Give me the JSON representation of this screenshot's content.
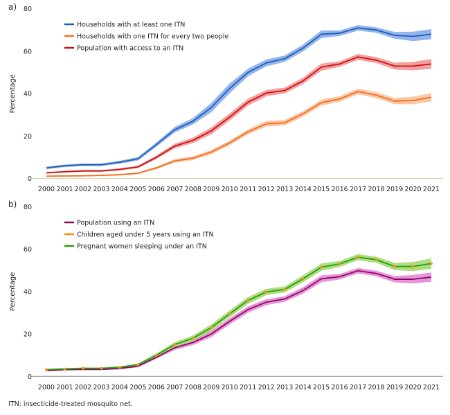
{
  "footnote": "ITN: insecticide-treated mosquito net.",
  "chart_data": [
    {
      "type": "line",
      "panel_label": "a)",
      "ylabel": "Percentage",
      "xlabel": "",
      "ylim": [
        0,
        80
      ],
      "yticks": [
        "0",
        "20",
        "40",
        "60",
        "80"
      ],
      "ytick_values": [
        0,
        20,
        40,
        60,
        80
      ],
      "categories": [
        "2000",
        "2001",
        "2002",
        "2003",
        "2004",
        "2005",
        "2006",
        "2007",
        "2008",
        "2009",
        "2010",
        "2011",
        "2012",
        "2013",
        "2014",
        "2015",
        "2016",
        "2017",
        "2018",
        "2019",
        "2020",
        "2021"
      ],
      "legend_position": "top-left",
      "axis_color": "#c9c99a",
      "series": [
        {
          "name": "Households with at least one ITN",
          "color": "#1f5fb0",
          "band_color": "#6f9be8",
          "values": [
            5,
            6,
            6.5,
            6.5,
            7.7,
            9.3,
            16,
            23,
            27,
            33.5,
            42.5,
            50,
            54.5,
            56.5,
            61.5,
            68,
            68.5,
            71,
            70,
            67.5,
            67,
            68
          ],
          "ci_halfwidth": [
            0.6,
            0.6,
            0.6,
            0.6,
            0.7,
            0.8,
            1,
            1.3,
            1.5,
            2.2,
            2.3,
            1.8,
            1.6,
            1.5,
            1.6,
            1.8,
            1.3,
            1.3,
            1.3,
            1.6,
            2.2,
            2.4
          ]
        },
        {
          "name": "Households with one ITN for every two people",
          "color": "#f07020",
          "band_color": "#f8b48a",
          "values": [
            1.1,
            1.2,
            1.3,
            1.5,
            1.8,
            2.5,
            5,
            8.3,
            9.6,
            12.5,
            16.8,
            22,
            25.8,
            26.3,
            30.5,
            35.8,
            37.5,
            41,
            39.3,
            36.5,
            36.8,
            38.3
          ],
          "ci_halfwidth": [
            0.3,
            0.3,
            0.3,
            0.3,
            0.4,
            0.4,
            0.6,
            0.8,
            0.9,
            1,
            1.1,
            1.2,
            1.3,
            1.3,
            1.3,
            1.4,
            1.3,
            1.4,
            1.4,
            1.5,
            1.8,
            2
          ]
        },
        {
          "name": "Population with access to an ITN",
          "color": "#cc1111",
          "band_color": "#ee8080",
          "values": [
            2.7,
            3.2,
            3.6,
            3.6,
            4.3,
            5.5,
            10,
            15.3,
            18,
            22.5,
            29,
            36,
            40.3,
            41.5,
            46,
            52.5,
            54,
            57.3,
            55.8,
            53,
            53,
            54
          ],
          "ci_halfwidth": [
            0.4,
            0.4,
            0.4,
            0.4,
            0.5,
            0.6,
            0.8,
            1.1,
            1.3,
            1.6,
            1.7,
            1.6,
            1.5,
            1.4,
            1.5,
            1.7,
            1.3,
            1.4,
            1.4,
            1.6,
            2,
            2.3
          ]
        }
      ]
    },
    {
      "type": "line",
      "panel_label": "b)",
      "ylabel": "Percentage",
      "xlabel": "",
      "ylim": [
        0,
        80
      ],
      "yticks": [
        "0",
        "20",
        "40",
        "60",
        "80"
      ],
      "ytick_values": [
        0,
        20,
        40,
        60,
        80
      ],
      "categories": [
        "2000",
        "2001",
        "2002",
        "2003",
        "2004",
        "2005",
        "2006",
        "2007",
        "2008",
        "2009",
        "2010",
        "2011",
        "2012",
        "2013",
        "2014",
        "2015",
        "2016",
        "2017",
        "2018",
        "2019",
        "2020",
        "2021"
      ],
      "legend_position": "top-left",
      "axis_color": "#888888",
      "series": [
        {
          "name": "Population using an ITN",
          "color": "#8a0a5a",
          "band_color": "#e070d0",
          "values": [
            2.8,
            3.2,
            3.3,
            3.3,
            3.8,
            4.8,
            9,
            13.5,
            16,
            20,
            26,
            31.5,
            35,
            36.5,
            40.5,
            46,
            47,
            49.8,
            48.5,
            45.8,
            45.8,
            46.8
          ],
          "ci_halfwidth": [
            0.4,
            0.4,
            0.4,
            0.4,
            0.5,
            0.5,
            0.7,
            1,
            1.2,
            1.4,
            1.5,
            1.5,
            1.4,
            1.3,
            1.5,
            1.6,
            1.3,
            1.3,
            1.3,
            1.5,
            2,
            2.2
          ],
          "marker": false
        },
        {
          "name": "Children aged under 5 years using an ITN",
          "color": "#f49020",
          "band_color": "#f8c890",
          "values": [
            3.2,
            3.5,
            3.8,
            3.8,
            4.3,
            5.5,
            10,
            15,
            18,
            23,
            29.5,
            35.8,
            39.8,
            41,
            46,
            51.5,
            53,
            56.2,
            55,
            51.8,
            51.8,
            53.2
          ],
          "ci_halfwidth": [
            0.4,
            0.4,
            0.4,
            0.4,
            0.5,
            0.6,
            0.8,
            1.1,
            1.3,
            1.5,
            1.6,
            1.6,
            1.5,
            1.4,
            1.6,
            1.7,
            1.4,
            1.4,
            1.4,
            1.7,
            2.1,
            2.4
          ],
          "marker": true
        },
        {
          "name": "Pregnant women sleeping under an ITN",
          "color": "#2a9a10",
          "band_color": "#90e070",
          "values": [
            3.2,
            3.5,
            3.8,
            3.8,
            4.3,
            5.5,
            10,
            15,
            18,
            23,
            29.5,
            35.8,
            39.8,
            41,
            46,
            51.5,
            53,
            56.2,
            55,
            51.8,
            51.8,
            53.2
          ],
          "ci_halfwidth": [
            0.4,
            0.4,
            0.4,
            0.4,
            0.5,
            0.6,
            0.8,
            1.1,
            1.3,
            1.5,
            1.6,
            1.6,
            1.5,
            1.4,
            1.6,
            1.7,
            1.4,
            1.4,
            1.4,
            1.7,
            2.1,
            2.4
          ],
          "marker": false
        }
      ]
    }
  ]
}
